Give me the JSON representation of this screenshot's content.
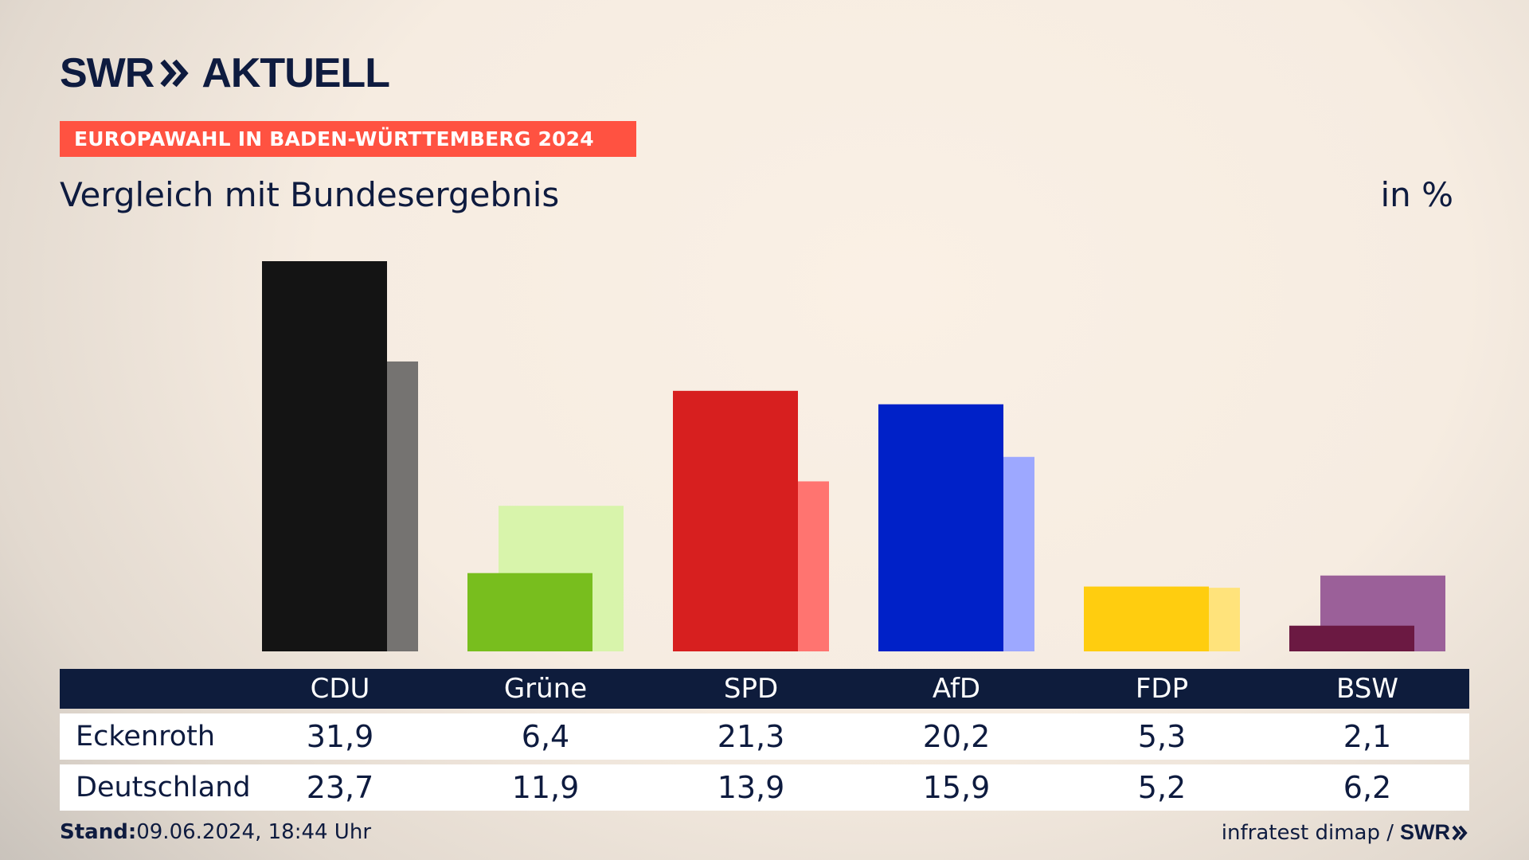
{
  "brand": {
    "name": "SWR",
    "product": "AKTUELL"
  },
  "topic": "EUROPAWAHL IN BADEN-WÜRTTEMBERG 2024",
  "title": "Vergleich mit Bundesergebnis",
  "unit": "in %",
  "table": {
    "rows": [
      {
        "label": "Eckenroth",
        "values": [
          "31,9",
          "6,4",
          "21,3",
          "20,2",
          "5,3",
          "2,1"
        ]
      },
      {
        "label": "Deutschland",
        "values": [
          "23,7",
          "11,9",
          "13,9",
          "15,9",
          "5,2",
          "6,2"
        ]
      }
    ]
  },
  "footer": {
    "stand_label": "Stand:",
    "stand_value": "09.06.2024, 18:44 Uhr",
    "source": "infratest dimap /",
    "source_brand": "SWR"
  },
  "chart_data": {
    "type": "bar",
    "categories": [
      "CDU",
      "Grüne",
      "SPD",
      "AfD",
      "FDP",
      "BSW"
    ],
    "series": [
      {
        "name": "Eckenroth",
        "values": [
          31.9,
          6.4,
          21.3,
          20.2,
          5.3,
          2.1
        ],
        "colors": [
          "#141414",
          "#78be1e",
          "#d71f1f",
          "#0021c8",
          "#ffcd0f",
          "#6b1942"
        ]
      },
      {
        "name": "Deutschland",
        "values": [
          23.7,
          11.9,
          13.9,
          15.9,
          5.2,
          6.2
        ],
        "colors": [
          "#757371",
          "#d8f4ab",
          "#ff7470",
          "#9da8ff",
          "#ffe37b",
          "#9b6099"
        ]
      }
    ],
    "ylim": [
      0,
      31.9
    ],
    "grid": false,
    "legend": "none"
  }
}
